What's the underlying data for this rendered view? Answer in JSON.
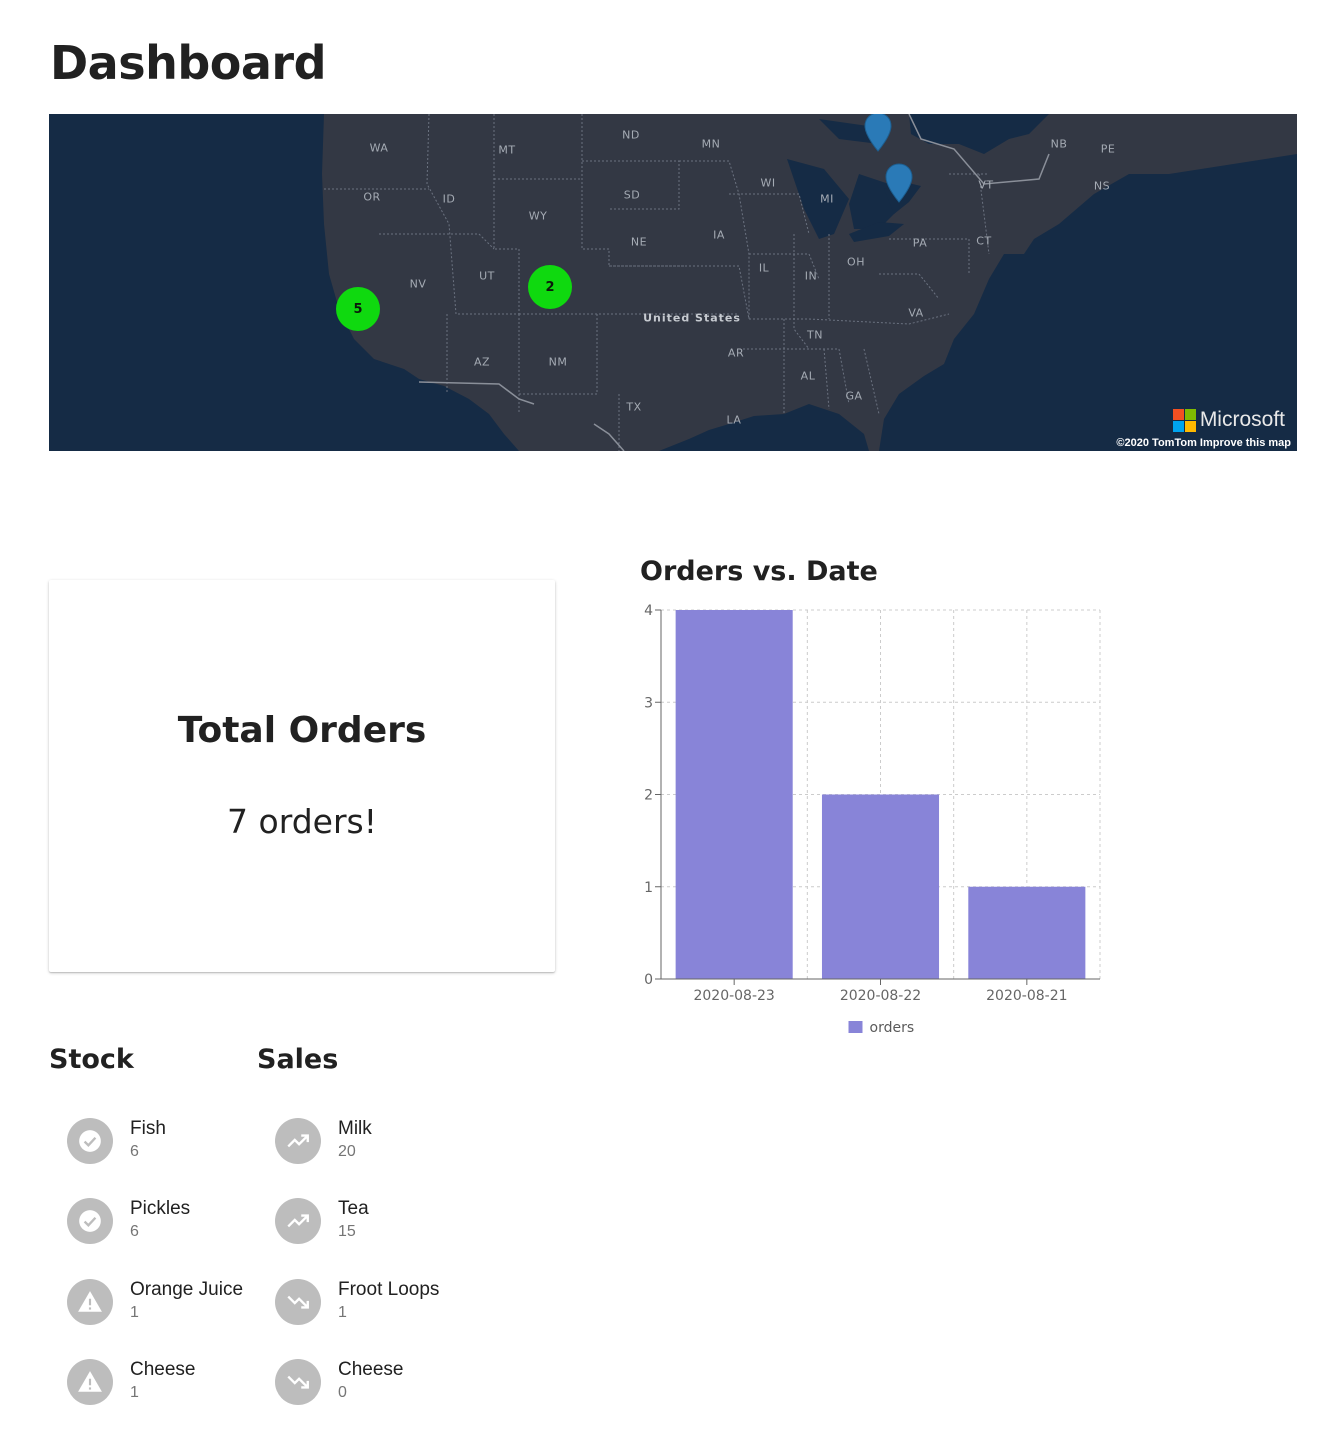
{
  "page": {
    "title": "Dashboard"
  },
  "map": {
    "state_labels": [
      "WA",
      "MT",
      "ND",
      "MN",
      "NB",
      "PE",
      "OR",
      "ID",
      "SD",
      "WI",
      "MI",
      "NS",
      "VT",
      "WY",
      "NE",
      "IA",
      "PA",
      "CT",
      "NV",
      "UT",
      "IL",
      "IN",
      "OH",
      "VA",
      "TN",
      "AR",
      "AZ",
      "NM",
      "AL",
      "GA",
      "TX",
      "LA"
    ],
    "country_label": "United States",
    "clusters": [
      {
        "count": "5"
      },
      {
        "count": "2"
      }
    ],
    "pins": [
      {
        "name": "pin-north"
      },
      {
        "name": "pin-ontario"
      }
    ],
    "brand": "Microsoft",
    "copyright": "©2020 TomTom  Improve this map",
    "colors": {
      "water": "#152b45",
      "land": "#333844",
      "cluster": "#0fd90f",
      "pin": "#2a7ab7"
    }
  },
  "total_orders": {
    "title": "Total Orders",
    "value": "7 orders!"
  },
  "stock": {
    "title": "Stock",
    "items": [
      {
        "name": "Fish",
        "count": "6",
        "icon": "check-circle-icon"
      },
      {
        "name": "Pickles",
        "count": "6",
        "icon": "check-circle-icon"
      },
      {
        "name": "Orange Juice",
        "count": "1",
        "icon": "warning-icon"
      },
      {
        "name": "Cheese",
        "count": "1",
        "icon": "warning-icon"
      }
    ]
  },
  "sales": {
    "title": "Sales",
    "items": [
      {
        "name": "Milk",
        "count": "20",
        "icon": "trending-up-icon"
      },
      {
        "name": "Tea",
        "count": "15",
        "icon": "trending-up-icon"
      },
      {
        "name": "Froot Loops",
        "count": "1",
        "icon": "trending-down-icon"
      },
      {
        "name": "Cheese",
        "count": "0",
        "icon": "trending-down-icon"
      }
    ]
  },
  "chart_data": {
    "type": "bar",
    "title": "Orders vs. Date",
    "categories": [
      "2020-08-23",
      "2020-08-22",
      "2020-08-21"
    ],
    "series": [
      {
        "name": "orders",
        "values": [
          4,
          2,
          1
        ],
        "color": "#8884d8"
      }
    ],
    "yticks": [
      0,
      1,
      2,
      3,
      4
    ],
    "ylim": [
      0,
      4
    ],
    "grid": true,
    "legend": "bottom"
  }
}
